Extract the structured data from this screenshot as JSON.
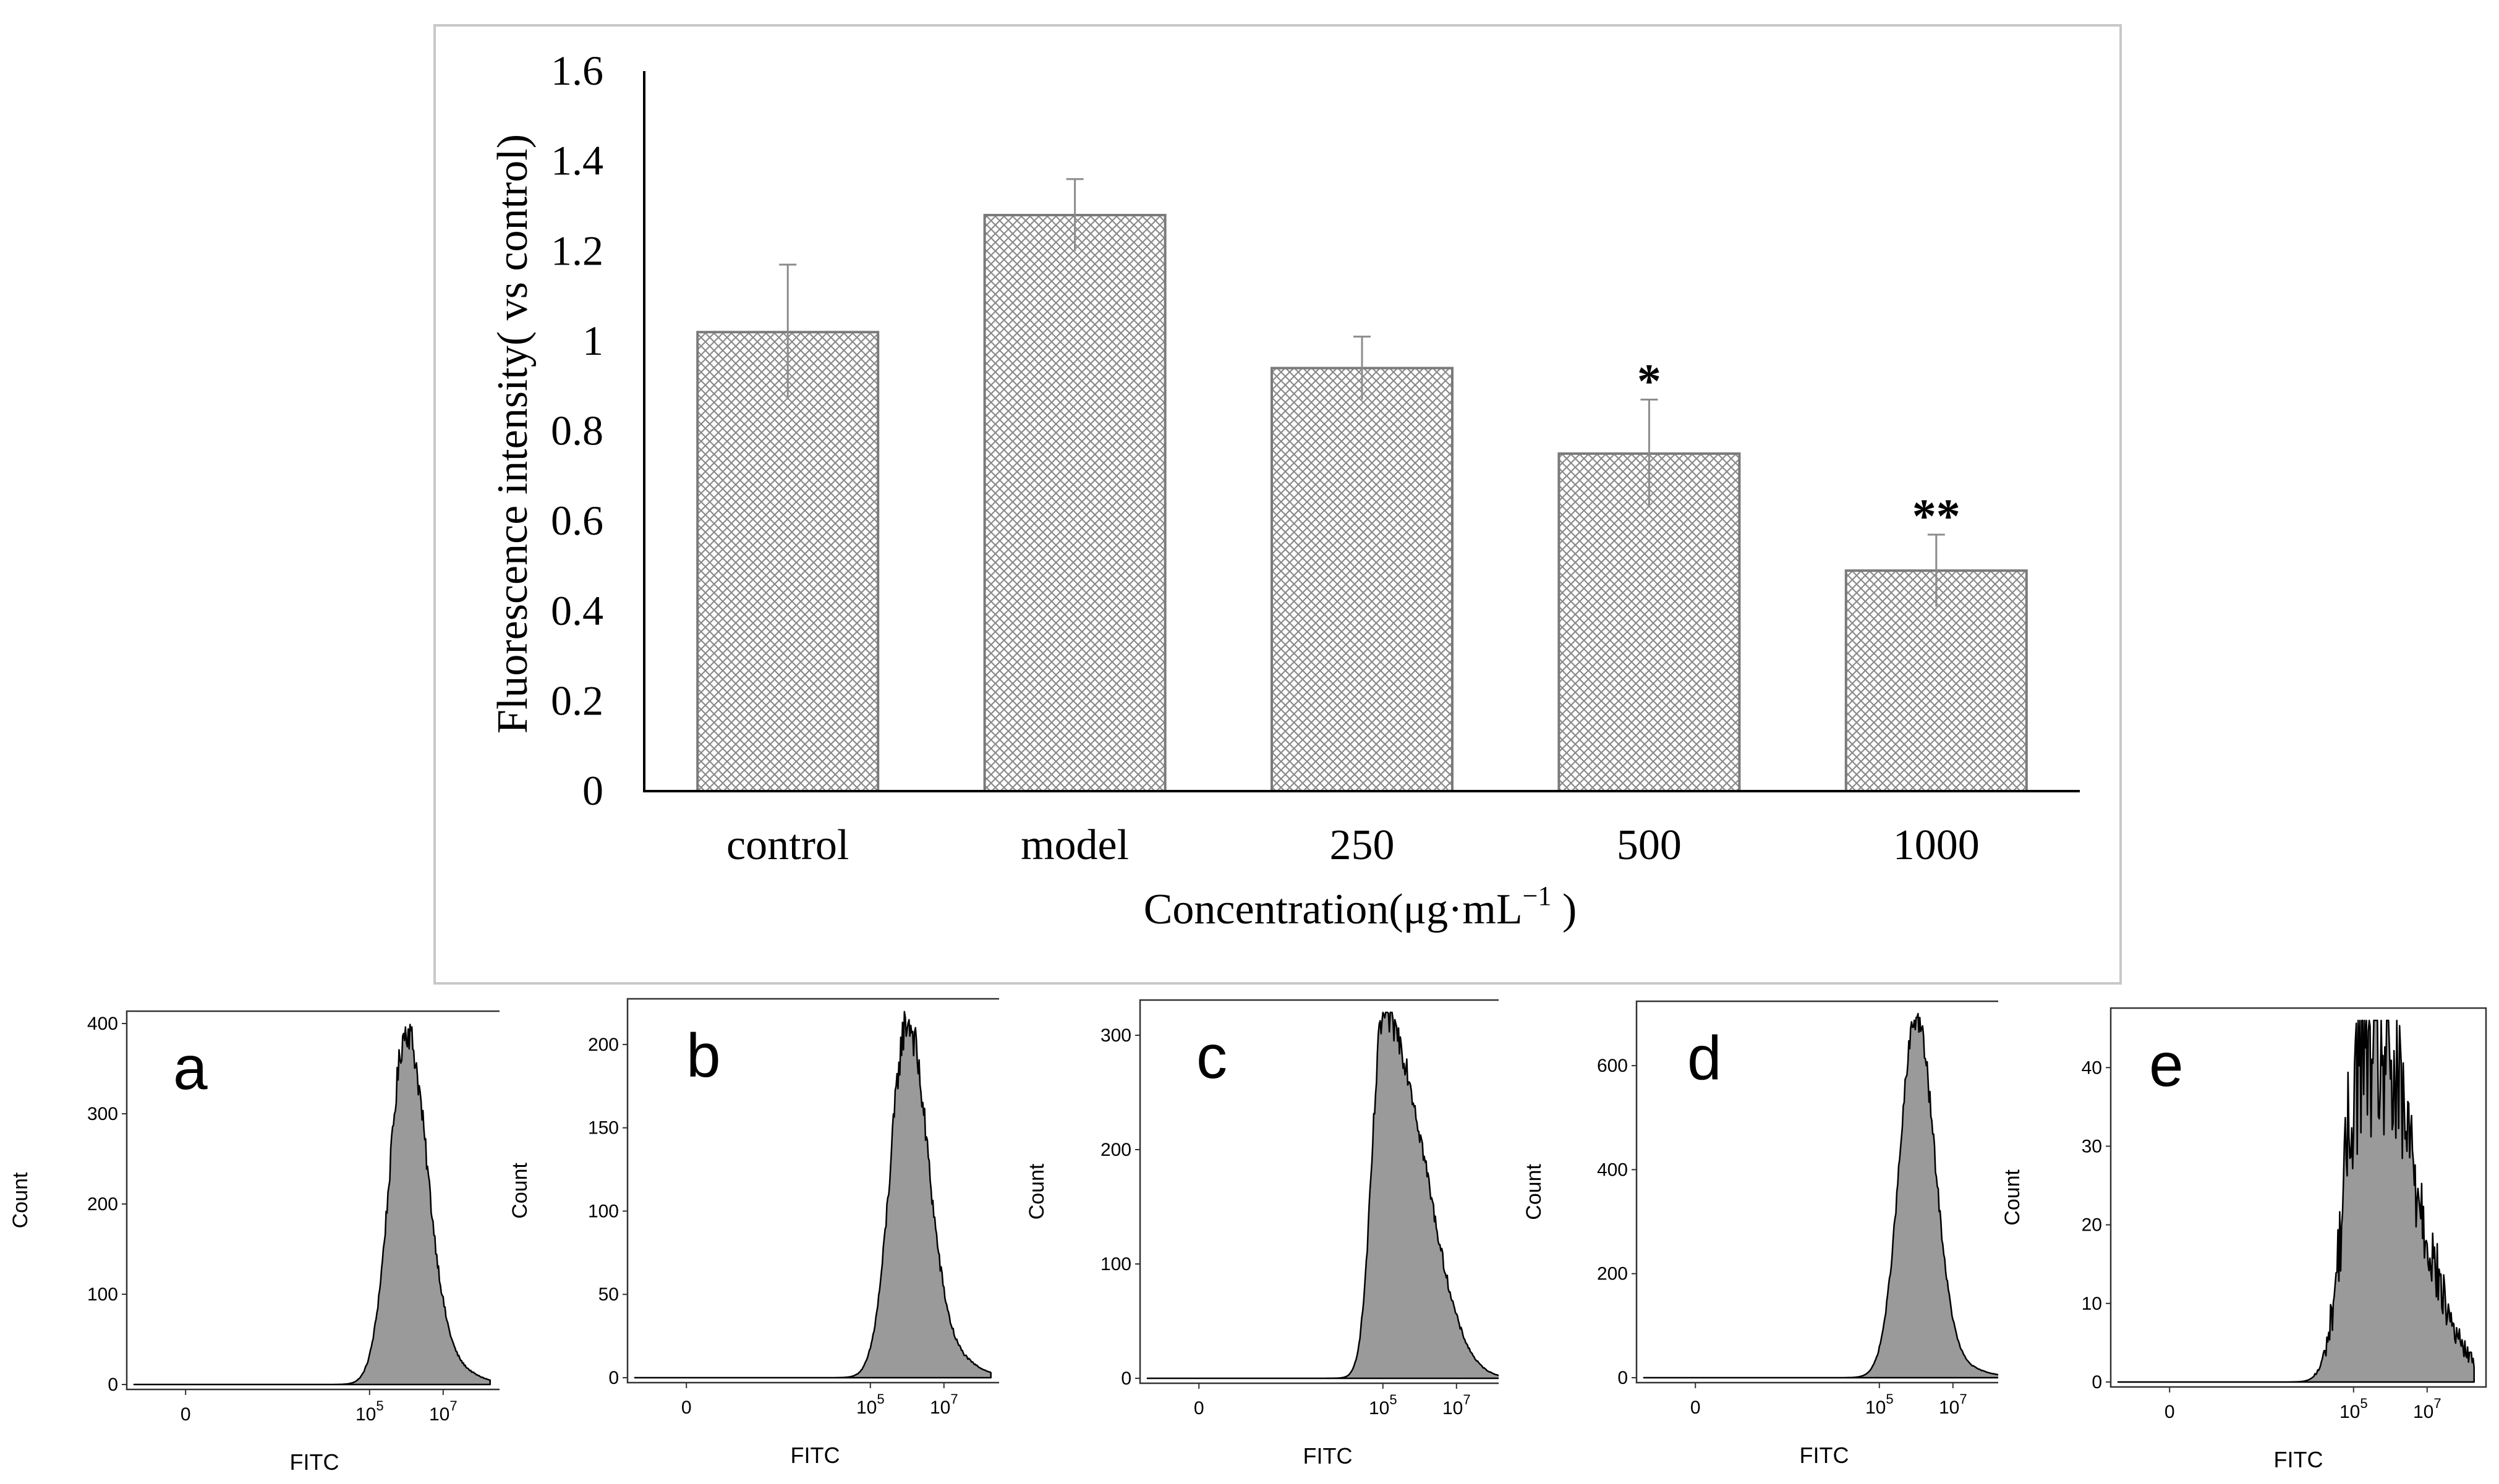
{
  "chart_data": [
    {
      "type": "bar",
      "title": "",
      "xlabel": "Concentration(μg·mL",
      "xlabel_superscript": "−1",
      "xlabel_close": " )",
      "ylabel": "Fluorescence intensity( vs control)",
      "ylim": [
        0,
        1.6
      ],
      "yticks": [
        0,
        0.2,
        0.4,
        0.6,
        0.8,
        1,
        1.2,
        1.4,
        1.6
      ],
      "ytick_labels": [
        "0",
        "0.2",
        "0.4",
        "0.6",
        "0.8",
        "1",
        "1.2",
        "1.4",
        "1.6"
      ],
      "categories": [
        "control",
        "model",
        "250",
        "500",
        "1000"
      ],
      "values": [
        1.02,
        1.28,
        0.94,
        0.75,
        0.49
      ],
      "errors": [
        0.15,
        0.08,
        0.07,
        0.12,
        0.08
      ],
      "significance": [
        "",
        "",
        "",
        "*",
        "**"
      ],
      "fill_pattern": "crosshatch",
      "bar_stroke": "#7a7a7a"
    },
    {
      "type": "area",
      "panel_label": "a",
      "xlabel": "FITC",
      "ylabel": "Count",
      "ylim": [
        0,
        400
      ],
      "yticks": [
        0,
        100,
        200,
        300,
        400
      ],
      "ytick_labels": [
        "0",
        "100",
        "200",
        "300",
        "400"
      ],
      "xticks": [
        {
          "value": 0,
          "base": "0",
          "exp": ""
        },
        {
          "value": 5,
          "base": "10",
          "exp": "5"
        },
        {
          "value": 7,
          "base": "10",
          "exp": "7"
        }
      ],
      "xlim": [
        -1.6,
        8.6
      ],
      "shape": {
        "peak_x": 6.0,
        "peak_y": 395,
        "sigma_left": 0.45,
        "sigma_right": 0.55,
        "tail_weight": 0.05,
        "noise": 0.05
      }
    },
    {
      "type": "area",
      "panel_label": "b",
      "xlabel": "FITC",
      "ylabel": "Count",
      "ylim": [
        0,
        220
      ],
      "yticks": [
        0,
        50,
        100,
        150,
        200
      ],
      "ytick_labels": [
        "0",
        "50",
        "100",
        "150",
        "200"
      ],
      "xticks": [
        {
          "value": 0,
          "base": "0",
          "exp": ""
        },
        {
          "value": 5,
          "base": "10",
          "exp": "5"
        },
        {
          "value": 7,
          "base": "10",
          "exp": "7"
        }
      ],
      "xlim": [
        -1.6,
        8.6
      ],
      "shape": {
        "peak_x": 6.0,
        "peak_y": 215,
        "sigma_left": 0.45,
        "sigma_right": 0.55,
        "tail_weight": 0.06,
        "noise": 0.06
      }
    },
    {
      "type": "area",
      "panel_label": "c",
      "xlabel": "FITC",
      "ylabel": "Count",
      "ylim": [
        0,
        320
      ],
      "yticks": [
        0,
        100,
        200,
        300
      ],
      "ytick_labels": [
        "0",
        "100",
        "200",
        "300"
      ],
      "xticks": [
        {
          "value": 0,
          "base": "0",
          "exp": ""
        },
        {
          "value": 5,
          "base": "10",
          "exp": "5"
        },
        {
          "value": 7,
          "base": "10",
          "exp": "7"
        }
      ],
      "xlim": [
        -1.6,
        8.6
      ],
      "shape": {
        "peak_x": 5.0,
        "peak_y": 318,
        "sigma_left": 0.3,
        "sigma_right": 1.0,
        "tail_weight": 0.1,
        "noise": 0.05
      }
    },
    {
      "type": "area",
      "panel_label": "d",
      "xlabel": "FITC",
      "ylabel": "Count",
      "ylim": [
        0,
        700
      ],
      "yticks": [
        0,
        200,
        400,
        600
      ],
      "ytick_labels": [
        "0",
        "200",
        "400",
        "600"
      ],
      "xticks": [
        {
          "value": 0,
          "base": "0",
          "exp": ""
        },
        {
          "value": 5,
          "base": "10",
          "exp": "5"
        },
        {
          "value": 7,
          "base": "10",
          "exp": "7"
        }
      ],
      "xlim": [
        -1.6,
        8.6
      ],
      "shape": {
        "peak_x": 6.0,
        "peak_y": 695,
        "sigma_left": 0.45,
        "sigma_right": 0.5,
        "tail_weight": 0.03,
        "noise": 0.04
      }
    },
    {
      "type": "area",
      "panel_label": "e",
      "xlabel": "FITC",
      "ylabel": "Count",
      "ylim": [
        0,
        46
      ],
      "yticks": [
        0,
        10,
        20,
        30,
        40
      ],
      "ytick_labels": [
        "0",
        "10",
        "20",
        "30",
        "40"
      ],
      "xticks": [
        {
          "value": 0,
          "base": "0",
          "exp": ""
        },
        {
          "value": 5,
          "base": "10",
          "exp": "5"
        },
        {
          "value": 7,
          "base": "10",
          "exp": "7"
        }
      ],
      "xlim": [
        -1.6,
        8.6
      ],
      "shape": {
        "peak_x": 5.2,
        "peak_y": 43,
        "sigma_left": 0.45,
        "sigma_right": 1.3,
        "tail_weight": 0.15,
        "noise": 0.3
      }
    }
  ]
}
